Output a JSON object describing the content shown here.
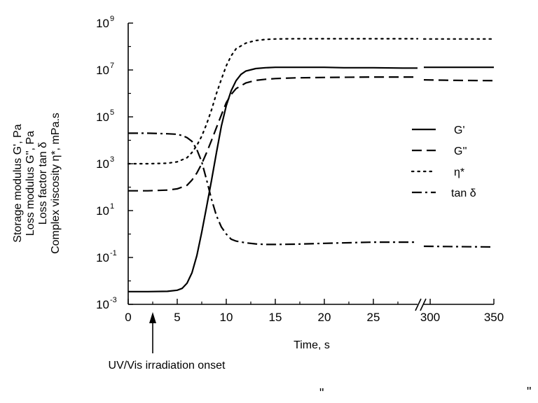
{
  "chart_data": {
    "type": "line",
    "title": "",
    "xlabel": "Time, s",
    "ylabel_lines": [
      "Storage modulus G', Pa",
      "Loss modulus G'', Pa",
      "Loss factor tan δ",
      "Complex viscosity η*, mPa.s"
    ],
    "y_scale": "log",
    "ylim": [
      0.001,
      1000000000
    ],
    "y_ticks": [
      {
        "base": "10",
        "exp": "-3",
        "value": 0.001
      },
      {
        "base": "10",
        "exp": "-1",
        "value": 0.1
      },
      {
        "base": "10",
        "exp": "1",
        "value": 10
      },
      {
        "base": "10",
        "exp": "3",
        "value": 1000
      },
      {
        "base": "10",
        "exp": "5",
        "value": 100000
      },
      {
        "base": "10",
        "exp": "7",
        "value": 10000000
      },
      {
        "base": "10",
        "exp": "9",
        "value": 1000000000
      }
    ],
    "x_segments": [
      {
        "range": [
          0,
          29.5
        ],
        "ticks": [
          {
            "label": "0",
            "value": 0
          },
          {
            "label": "5",
            "value": 5
          },
          {
            "label": "10",
            "value": 10
          },
          {
            "label": "15",
            "value": 15
          },
          {
            "label": "20",
            "value": 20
          },
          {
            "label": "25",
            "value": 25
          }
        ]
      },
      {
        "range": [
          295,
          350
        ],
        "ticks": [
          {
            "label": "300",
            "value": 300
          },
          {
            "label": "350",
            "value": 350
          }
        ]
      }
    ],
    "axis_break": "between 29.5 s and 295 s",
    "annotation": {
      "text": "UV/Vis irradiation onset",
      "x": 2.5
    },
    "legend_position": "right",
    "series": [
      {
        "name": "G'",
        "dash": "solid",
        "x": [
          0,
          2,
          4,
          5,
          5.5,
          6,
          6.5,
          7,
          7.5,
          8,
          8.5,
          9,
          9.5,
          10,
          10.5,
          11,
          11.5,
          12,
          13,
          14,
          15,
          16,
          18,
          20,
          22,
          25,
          28,
          29.5,
          295,
          310,
          330,
          350
        ],
        "y": [
          0.0035,
          0.0035,
          0.0036,
          0.004,
          0.0048,
          0.008,
          0.022,
          0.12,
          1.2,
          15,
          200,
          3000,
          40000,
          300000,
          1300000,
          3500000,
          6500000,
          9000000,
          11500000,
          12500000,
          13000000,
          13000000,
          13000000,
          13000000,
          12500000,
          12500000,
          12000000,
          12000000,
          13000000,
          13000000,
          13000000,
          13000000
        ]
      },
      {
        "name": "G''",
        "dash": "dashed",
        "x": [
          0,
          2,
          4,
          5,
          6,
          6.5,
          7,
          7.5,
          8,
          8.5,
          9,
          9.5,
          10,
          10.5,
          11,
          12,
          13,
          14,
          15,
          17,
          20,
          25,
          29.5,
          295,
          320,
          350
        ],
        "y": [
          70,
          70,
          75,
          85,
          120,
          200,
          400,
          1000,
          3000,
          10000,
          35000,
          120000,
          400000,
          900000,
          1600000,
          2800000,
          3600000,
          4000000,
          4300000,
          4600000,
          4800000,
          5000000,
          5000000,
          3800000,
          3600000,
          3500000
        ]
      },
      {
        "name": "η*",
        "dash": "dotted",
        "x": [
          0,
          2,
          4,
          5,
          6,
          6.5,
          7,
          7.5,
          8,
          8.5,
          9,
          9.5,
          10,
          10.5,
          11,
          12,
          13,
          14,
          15,
          17,
          20,
          25,
          29.5,
          295,
          320,
          350
        ],
        "y": [
          1000,
          1000,
          1050,
          1200,
          1800,
          3000,
          6000,
          15000,
          50000,
          200000,
          1000000,
          4000000,
          15000000,
          40000000,
          80000000,
          140000000,
          180000000,
          200000000,
          210000000,
          215000000,
          215000000,
          215000000,
          215000000,
          210000000,
          210000000,
          210000000
        ]
      },
      {
        "name": "tan δ",
        "dash": "dashdot",
        "x": [
          0,
          2,
          4,
          5,
          5.5,
          6,
          6.5,
          7,
          7.5,
          8,
          8.5,
          9,
          9.5,
          10,
          10.5,
          11,
          12,
          13,
          14,
          15,
          17,
          20,
          25,
          29.5,
          295,
          320,
          350
        ],
        "y": [
          20000,
          20000,
          19000,
          18000,
          16000,
          13000,
          9000,
          4000,
          1200,
          200,
          30,
          6,
          2,
          1,
          0.6,
          0.5,
          0.42,
          0.38,
          0.36,
          0.36,
          0.37,
          0.4,
          0.45,
          0.45,
          0.3,
          0.29,
          0.28
        ]
      }
    ]
  },
  "stray_marks": [
    "\"",
    "\""
  ]
}
